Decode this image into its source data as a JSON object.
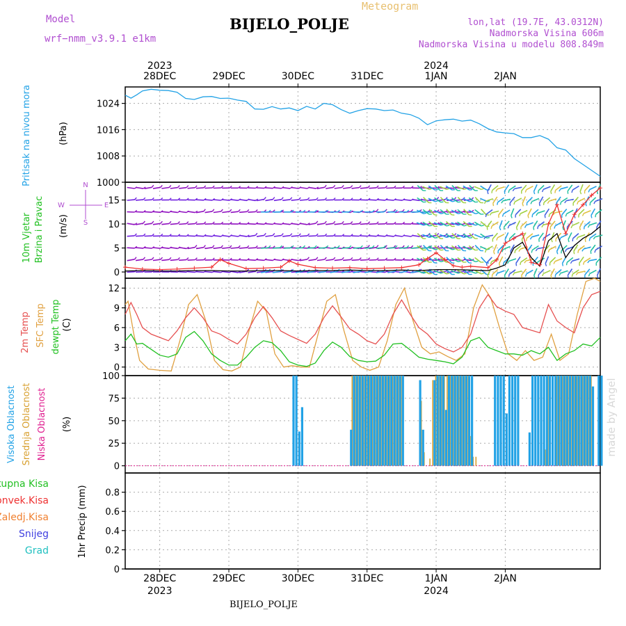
{
  "header": {
    "model_label": "Model",
    "model_id": "wrf−nmm_v3.9.1  e1km",
    "chart_type_label": "Meteogram",
    "station": "BIJELO_POLJE",
    "lonlat": "lon,lat (19.7E, 43.0312N)",
    "elevation": "Nadmorska Visina 606m",
    "model_elevation": "Nadmorska Visina u modelu 808.849m",
    "watermark": "made by Angel",
    "bottom_station": "BIJELO_POLJE"
  },
  "colors": {
    "pressure": "#22a2e6",
    "wind_speed": "#000000",
    "gust": "#ee3030",
    "temp2m": "#e65050",
    "sfc_temp": "#e0a040",
    "dewpoint": "#20c020",
    "cloud_high": "#22a2e6",
    "cloud_mid": "#d8a030",
    "cloud_low": "#e02090",
    "wind_barb": "#9010c0"
  },
  "chart_data": [
    {
      "type": "line",
      "panel": "pressure",
      "ylabel": [
        "Pritisak na nivou mora",
        "(hPa)"
      ],
      "ylim": [
        1000,
        1029
      ],
      "yticks": [
        1000,
        1008,
        1016,
        1024
      ],
      "x_hours": [
        0,
        2,
        4,
        6,
        9,
        12,
        15,
        18,
        21,
        24,
        27,
        30,
        33,
        36,
        39,
        42,
        45,
        48,
        51,
        54,
        57,
        60,
        63,
        66,
        69,
        72,
        75,
        78,
        81,
        84,
        87,
        90,
        93,
        96,
        99,
        102,
        105,
        108,
        111,
        114,
        117,
        120,
        123,
        126,
        129,
        132,
        135,
        138,
        141,
        144,
        147,
        150,
        153,
        156,
        159,
        162,
        165
      ],
      "values": [
        1026.5,
        1025.6,
        1026.6,
        1027.8,
        1028.3,
        1028.0,
        1027.9,
        1027.4,
        1025.5,
        1025.2,
        1026.0,
        1026.1,
        1025.5,
        1025.6,
        1025.0,
        1024.6,
        1022.3,
        1022.2,
        1023.0,
        1022.3,
        1022.6,
        1021.8,
        1023.1,
        1022.3,
        1024.0,
        1023.6,
        1022.1,
        1021.0,
        1021.8,
        1022.4,
        1022.3,
        1021.8,
        1022.0,
        1021.0,
        1020.6,
        1019.5,
        1017.5,
        1018.7,
        1019.0,
        1019.2,
        1018.6,
        1018.9,
        1017.8,
        1016.3,
        1015.3,
        1015.0,
        1014.8,
        1013.6,
        1013.6,
        1014.2,
        1013.1,
        1010.5,
        1009.8,
        1007.2,
        1005.4,
        1003.6,
        1001.8
      ]
    },
    {
      "type": "line",
      "panel": "wind",
      "ylabel": [
        "10m Vjetar",
        "Brzina i Pravac",
        "(m/s)"
      ],
      "compass": [
        "N",
        "E",
        "S",
        "W"
      ],
      "ylim": [
        -1.3,
        18.7
      ],
      "yticks": [
        0,
        5,
        10,
        15
      ],
      "series": [
        {
          "role": "speed",
          "x_hours": [
            0,
            6,
            12,
            18,
            24,
            30,
            36,
            42,
            48,
            54,
            60,
            66,
            72,
            78,
            84,
            90,
            96,
            102,
            108,
            114,
            120,
            126,
            129,
            132,
            135,
            138,
            141,
            144,
            147,
            150,
            153,
            156,
            159,
            162,
            165
          ],
          "values": [
            0.2,
            0.3,
            0.2,
            0.2,
            0.3,
            0.3,
            0.2,
            0.2,
            0.3,
            0.3,
            0.2,
            0.3,
            0.3,
            0.4,
            0.3,
            0.3,
            0.4,
            0.3,
            0.5,
            0.5,
            0.4,
            0.3,
            0.8,
            1.5,
            5.0,
            6.2,
            3.0,
            1.2,
            6.5,
            8.0,
            3.0,
            5.5,
            7.0,
            8.0,
            9.5
          ]
        },
        {
          "role": "gust",
          "x_hours": [
            0,
            6,
            12,
            18,
            24,
            30,
            33,
            36,
            42,
            48,
            54,
            57,
            60,
            66,
            72,
            78,
            84,
            90,
            96,
            102,
            105,
            108,
            111,
            114,
            117,
            120,
            126,
            129,
            132,
            135,
            138,
            141,
            144,
            147,
            150,
            153,
            156,
            159,
            162,
            165
          ],
          "values": [
            1.0,
            0.6,
            0.5,
            0.6,
            0.8,
            1.0,
            2.6,
            1.8,
            0.7,
            0.8,
            1.0,
            2.3,
            1.6,
            0.9,
            0.8,
            0.9,
            0.7,
            0.8,
            0.9,
            1.5,
            2.8,
            4.0,
            2.6,
            1.3,
            1.0,
            1.2,
            0.9,
            2.5,
            6.0,
            7.0,
            8.0,
            2.0,
            1.5,
            10.0,
            14.0,
            8.0,
            12.0,
            14.0,
            16.0,
            17.5
          ]
        }
      ]
    },
    {
      "type": "line",
      "panel": "temperature",
      "ylabel": [
        "2m Temp",
        "SFC Temp",
        "dewpt Temp",
        "(C)"
      ],
      "ylim": [
        -1.3,
        13.5
      ],
      "yticks": [
        0,
        3,
        6,
        9,
        12
      ],
      "series": [
        {
          "role": "temp2m",
          "x_hours": [
            0,
            2,
            4,
            6,
            9,
            12,
            15,
            18,
            21,
            24,
            27,
            30,
            33,
            36,
            39,
            42,
            45,
            48,
            51,
            54,
            57,
            60,
            63,
            66,
            69,
            72,
            75,
            78,
            81,
            84,
            87,
            90,
            93,
            96,
            99,
            102,
            105,
            108,
            111,
            114,
            117,
            120,
            123,
            126,
            129,
            132,
            135,
            138,
            141,
            144,
            147,
            150,
            153,
            156,
            159,
            162,
            165
          ],
          "values": [
            8.0,
            9.8,
            8.0,
            6.0,
            5.0,
            4.5,
            4.0,
            5.5,
            7.5,
            9.0,
            7.5,
            5.5,
            5.0,
            4.2,
            3.5,
            5.0,
            7.5,
            9.2,
            7.5,
            5.5,
            4.8,
            4.2,
            3.6,
            5.0,
            7.5,
            9.3,
            7.6,
            5.8,
            5.0,
            4.0,
            3.5,
            5.0,
            8.0,
            10.2,
            8.0,
            6.0,
            5.0,
            3.5,
            2.8,
            2.3,
            3.0,
            5.0,
            9.0,
            11.0,
            9.2,
            8.5,
            8.0,
            6.0,
            5.6,
            5.2,
            9.5,
            7.0,
            6.0,
            5.2,
            9.0,
            11.0,
            11.5
          ]
        },
        {
          "role": "sfc_temp",
          "x_hours": [
            0,
            1,
            3,
            5,
            8,
            12,
            16,
            19,
            22,
            25,
            28,
            31,
            34,
            37,
            40,
            43,
            46,
            49,
            52,
            55,
            58,
            61,
            64,
            67,
            70,
            73,
            76,
            79,
            82,
            85,
            88,
            91,
            94,
            97,
            100,
            103,
            106,
            109,
            112,
            115,
            118,
            121,
            124,
            127,
            130,
            133,
            136,
            139,
            142,
            145,
            148,
            151,
            154,
            157,
            160,
            163,
            165
          ],
          "values": [
            9.5,
            10.0,
            5.0,
            1.0,
            -0.3,
            -0.5,
            -0.6,
            4.0,
            9.5,
            11.0,
            7.0,
            1.0,
            -0.4,
            -0.6,
            0.0,
            5.5,
            10.0,
            8.5,
            2.0,
            0.0,
            0.2,
            0.0,
            0.0,
            5.0,
            10.0,
            11.0,
            5.5,
            1.0,
            0.0,
            -0.5,
            0.0,
            4.0,
            9.5,
            12.0,
            7.0,
            3.0,
            2.0,
            2.3,
            1.6,
            1.0,
            2.0,
            9.0,
            12.5,
            10.5,
            6.0,
            2.0,
            1.0,
            2.5,
            1.0,
            1.5,
            5.0,
            1.0,
            2.0,
            8.0,
            13.0,
            13.5,
            13.0
          ]
        },
        {
          "role": "dewpoint",
          "x_hours": [
            0,
            2,
            4,
            6,
            9,
            12,
            15,
            18,
            21,
            24,
            27,
            30,
            33,
            36,
            39,
            42,
            45,
            48,
            51,
            54,
            57,
            60,
            63,
            66,
            69,
            72,
            75,
            78,
            81,
            84,
            87,
            90,
            93,
            96,
            99,
            102,
            105,
            108,
            111,
            114,
            117,
            120,
            123,
            126,
            129,
            132,
            135,
            138,
            141,
            144,
            147,
            150,
            153,
            156,
            159,
            162,
            165
          ],
          "values": [
            4.0,
            5.0,
            3.5,
            3.6,
            2.7,
            1.8,
            1.5,
            2.0,
            4.5,
            5.4,
            4.0,
            2.0,
            1.0,
            0.3,
            0.3,
            1.5,
            3.0,
            4.0,
            3.7,
            2.5,
            0.8,
            0.3,
            0.1,
            0.6,
            2.5,
            3.8,
            3.0,
            1.6,
            1.0,
            0.8,
            0.9,
            1.8,
            3.5,
            3.6,
            2.6,
            1.5,
            1.2,
            1.0,
            0.8,
            0.5,
            1.5,
            4.0,
            4.5,
            3.0,
            2.5,
            2.0,
            2.0,
            1.8,
            2.5,
            2.0,
            3.0,
            1.0,
            2.0,
            2.5,
            3.5,
            3.2,
            4.5
          ]
        }
      ]
    },
    {
      "type": "bar",
      "panel": "cloud",
      "ylabel": [
        "Visoka Oblacnost",
        "Srednja Oblacnost",
        "Niska Oblacnost",
        "(%)"
      ],
      "ylim": [
        -8,
        100
      ],
      "yticks": [
        0,
        25,
        50,
        75,
        100
      ],
      "series": [
        {
          "role": "high",
          "x_hours": [
            58,
            59,
            60,
            61,
            62,
            78,
            79,
            80,
            81,
            82,
            83,
            84,
            85,
            86,
            87,
            88,
            89,
            90,
            91,
            92,
            93,
            94,
            95,
            96,
            102,
            103,
            107,
            108,
            109,
            110,
            111,
            112,
            113,
            114,
            115,
            116,
            117,
            118,
            119,
            120,
            128,
            129,
            130,
            131,
            132,
            133,
            134,
            135,
            136,
            137,
            140,
            141,
            142,
            143,
            144,
            145,
            146,
            147,
            148,
            149,
            150,
            151,
            152,
            153,
            154,
            155,
            156,
            157,
            158,
            159,
            160,
            161,
            162,
            163,
            164,
            165
          ],
          "values": [
            100,
            100,
            38,
            65,
            0,
            40,
            100,
            100,
            100,
            100,
            100,
            100,
            100,
            100,
            100,
            100,
            100,
            100,
            100,
            100,
            100,
            100,
            100,
            100,
            95,
            40,
            95,
            100,
            100,
            100,
            62,
            100,
            100,
            100,
            100,
            100,
            100,
            100,
            100,
            100,
            100,
            100,
            100,
            100,
            58,
            100,
            100,
            100,
            100,
            0,
            37,
            100,
            100,
            100,
            100,
            100,
            100,
            100,
            100,
            100,
            100,
            100,
            100,
            100,
            100,
            100,
            100,
            100,
            100,
            100,
            100,
            100,
            88,
            0,
            100,
            100
          ]
        },
        {
          "role": "mid",
          "x_hours": [
            79,
            80,
            81,
            82,
            83,
            84,
            85,
            86,
            87,
            88,
            89,
            90,
            91,
            92,
            93,
            94,
            95,
            96,
            103,
            104,
            106,
            107,
            108,
            109,
            110,
            111,
            112,
            113,
            114,
            115,
            116,
            117,
            118,
            119,
            120,
            121,
            122,
            146,
            147,
            150,
            151,
            152,
            153,
            154,
            155,
            156,
            157,
            158,
            159,
            160,
            161,
            162
          ],
          "values": [
            100,
            100,
            100,
            100,
            100,
            100,
            100,
            100,
            100,
            100,
            100,
            100,
            100,
            100,
            100,
            100,
            100,
            100,
            72,
            15,
            8,
            95,
            100,
            100,
            100,
            100,
            100,
            100,
            100,
            100,
            100,
            100,
            100,
            100,
            33,
            10,
            10,
            18,
            100,
            100,
            100,
            100,
            100,
            100,
            100,
            100,
            100,
            100,
            100,
            100,
            100,
            100
          ]
        },
        {
          "role": "low",
          "x_hours": [],
          "values": []
        }
      ]
    },
    {
      "type": "bar",
      "panel": "precip",
      "ylabel": [
        "1hr Precip (mm)"
      ],
      "legend": [
        "Ukupna Kisa",
        "Konvek.Kisa",
        "Zaledj.Kisa",
        "Snijeg",
        "Grad"
      ],
      "legend_colors": [
        "#22c022",
        "#ee3030",
        "#f08030",
        "#4040e0",
        "#20c0c0"
      ],
      "ylim": [
        0,
        1.0
      ],
      "yticks": [
        0,
        0.2,
        0.4,
        0.6,
        0.8
      ],
      "series": []
    }
  ],
  "x_axis": {
    "start": "2023-12-27 12Z",
    "hours_total": 165,
    "day_ticks_hours": [
      12,
      36,
      60,
      84,
      108,
      132
    ],
    "day_labels": [
      "28DEC",
      "29DEC",
      "30DEC",
      "31DEC",
      "1JAN",
      "2JAN"
    ],
    "year_labels": [
      {
        "index": 0,
        "label": "2023"
      },
      {
        "index": 4,
        "label": "2024"
      }
    ]
  }
}
